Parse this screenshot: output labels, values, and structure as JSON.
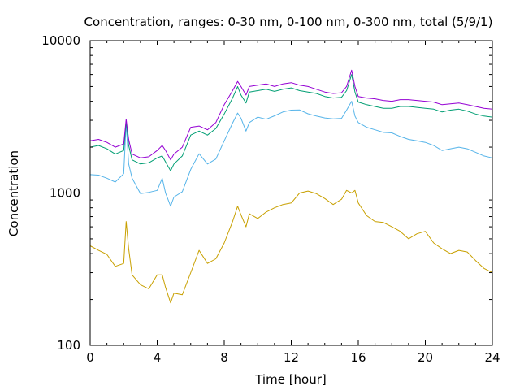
{
  "chart_data": {
    "type": "line",
    "title": "Concentration, ranges: 0-30 nm, 0-100 nm, 0-300 nm, total (5/9/1)",
    "xlabel": "Time [hour]",
    "ylabel": "Concentration",
    "xlim": [
      0,
      24
    ],
    "ylim": [
      100,
      10000
    ],
    "yscale": "log",
    "grid": false,
    "legend": "none",
    "x_ticks": [
      0,
      4,
      8,
      12,
      16,
      20,
      24
    ],
    "x_tick_labels": [
      "0",
      "4",
      "8",
      "12",
      "16",
      "20",
      "24"
    ],
    "y_ticks": [
      100,
      1000,
      10000
    ],
    "y_tick_labels": [
      "100",
      "1000",
      "10000"
    ],
    "x": [
      0.0,
      0.5,
      1.0,
      1.5,
      2.0,
      2.15,
      2.3,
      2.5,
      3.0,
      3.5,
      4.0,
      4.3,
      4.5,
      4.8,
      5.0,
      5.5,
      6.0,
      6.5,
      7.0,
      7.5,
      8.0,
      8.5,
      8.8,
      9.0,
      9.3,
      9.5,
      10.0,
      10.5,
      11.0,
      11.5,
      12.0,
      12.5,
      13.0,
      13.5,
      14.0,
      14.5,
      15.0,
      15.3,
      15.6,
      15.8,
      16.0,
      16.5,
      17.0,
      17.5,
      18.0,
      18.5,
      19.0,
      19.5,
      20.0,
      20.5,
      21.0,
      21.5,
      22.0,
      22.5,
      23.0,
      23.5,
      24.0
    ],
    "series": [
      {
        "color": "#c8a000",
        "values": [
          450,
          420,
          395,
          330,
          345,
          650,
          430,
          290,
          250,
          235,
          290,
          290,
          240,
          190,
          220,
          215,
          300,
          420,
          345,
          370,
          470,
          650,
          820,
          720,
          600,
          730,
          680,
          750,
          800,
          840,
          860,
          1000,
          1030,
          990,
          920,
          840,
          910,
          1040,
          1000,
          1040,
          860,
          710,
          650,
          640,
          600,
          560,
          500,
          540,
          560,
          470,
          430,
          400,
          420,
          410,
          360,
          320,
          300
        ]
      },
      {
        "color": "#56b4e9",
        "values": [
          1320,
          1310,
          1250,
          1180,
          1340,
          2880,
          1550,
          1250,
          990,
          1010,
          1040,
          1250,
          1000,
          820,
          940,
          1020,
          1430,
          1810,
          1550,
          1670,
          2200,
          2880,
          3350,
          3100,
          2550,
          2900,
          3150,
          3050,
          3210,
          3400,
          3500,
          3510,
          3310,
          3200,
          3110,
          3070,
          3090,
          3500,
          4000,
          3200,
          2900,
          2700,
          2600,
          2500,
          2480,
          2350,
          2250,
          2200,
          2150,
          2050,
          1900,
          1950,
          2000,
          1950,
          1850,
          1750,
          1700
        ]
      },
      {
        "color": "#009e73",
        "values": [
          2000,
          2050,
          1950,
          1800,
          1900,
          2950,
          2050,
          1650,
          1550,
          1580,
          1700,
          1750,
          1600,
          1400,
          1550,
          1750,
          2400,
          2550,
          2400,
          2650,
          3300,
          4200,
          5000,
          4400,
          3900,
          4600,
          4700,
          4800,
          4650,
          4800,
          4900,
          4700,
          4600,
          4500,
          4300,
          4200,
          4250,
          4700,
          6000,
          4600,
          3950,
          3800,
          3700,
          3600,
          3600,
          3700,
          3700,
          3650,
          3600,
          3550,
          3400,
          3500,
          3550,
          3450,
          3300,
          3200,
          3150
        ]
      },
      {
        "color": "#9400d3",
        "values": [
          2200,
          2250,
          2150,
          2000,
          2100,
          3050,
          2250,
          1800,
          1700,
          1730,
          1900,
          2050,
          1900,
          1650,
          1800,
          2000,
          2700,
          2750,
          2600,
          2900,
          3800,
          4700,
          5400,
          5000,
          4400,
          5000,
          5100,
          5200,
          5000,
          5200,
          5300,
          5100,
          5000,
          4800,
          4600,
          4500,
          4550,
          5000,
          6400,
          5000,
          4300,
          4200,
          4150,
          4050,
          4000,
          4100,
          4100,
          4050,
          4000,
          3950,
          3800,
          3850,
          3900,
          3800,
          3700,
          3600,
          3550
        ]
      }
    ]
  }
}
